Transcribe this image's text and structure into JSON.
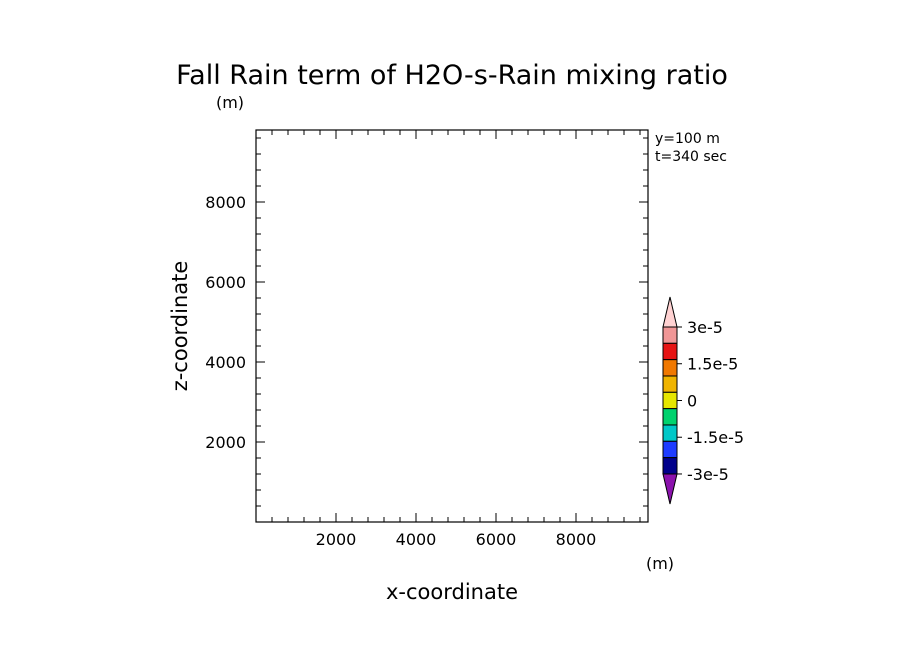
{
  "chart_data": {
    "type": "heatmap",
    "title": "Fall Rain term of H2O-s-Rain mixing ratio",
    "z_unit": "(m)",
    "x_unit": "(m)",
    "xlabel": "x-coordinate",
    "ylabel": "z-coordinate",
    "info": [
      "y=100 m",
      "t=340 sec"
    ],
    "xlim": [
      0,
      9800
    ],
    "ylim": [
      0,
      9800
    ],
    "x_ticks": [
      2000,
      4000,
      6000,
      8000
    ],
    "y_ticks": [
      2000,
      4000,
      6000,
      8000
    ],
    "x_tick_labels": [
      "2000",
      "4000",
      "6000",
      "8000"
    ],
    "y_tick_labels": [
      "2000",
      "4000",
      "6000",
      "8000"
    ],
    "field_values": [],
    "colorbar": {
      "levels": [
        -3e-05,
        -2.25e-05,
        -1.5e-05,
        -7.5e-06,
        0,
        7.5e-06,
        1.5e-05,
        2.25e-05,
        3e-05
      ],
      "labels": [
        {
          "value": 3e-05,
          "text": "3e-5"
        },
        {
          "value": 1.5e-05,
          "text": "1.5e-5"
        },
        {
          "value": 0,
          "text": "0"
        },
        {
          "value": -1.5e-05,
          "text": "-1.5e-5"
        },
        {
          "value": -3e-05,
          "text": "-3e-5"
        }
      ],
      "colors": [
        "#8b12ad",
        "#00008b",
        "#1e3cff",
        "#00c8c8",
        "#00d26e",
        "#e6e600",
        "#f0b400",
        "#f07800",
        "#e61414",
        "#f09696",
        "#ffd2d2"
      ]
    }
  }
}
